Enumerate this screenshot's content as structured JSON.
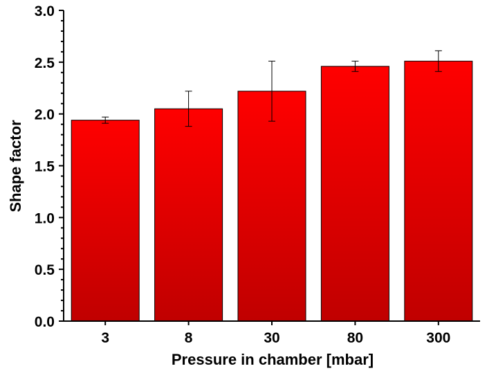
{
  "chart_data": {
    "type": "bar",
    "title": "",
    "xlabel": "Pressure in chamber [mbar]",
    "ylabel": "Shape factor",
    "categories": [
      "3",
      "8",
      "30",
      "80",
      "300"
    ],
    "values": [
      1.94,
      2.05,
      2.22,
      2.46,
      2.51
    ],
    "error": [
      0.03,
      0.17,
      0.29,
      0.05,
      0.1
    ],
    "ylim": [
      0.0,
      3.0
    ],
    "yticks": [
      "0.0",
      "0.5",
      "1.0",
      "1.5",
      "2.0",
      "2.5",
      "3.0"
    ],
    "grid": false,
    "legend": "none",
    "bar_color_top": "#ff0000",
    "bar_color_bottom": "#c00000"
  }
}
